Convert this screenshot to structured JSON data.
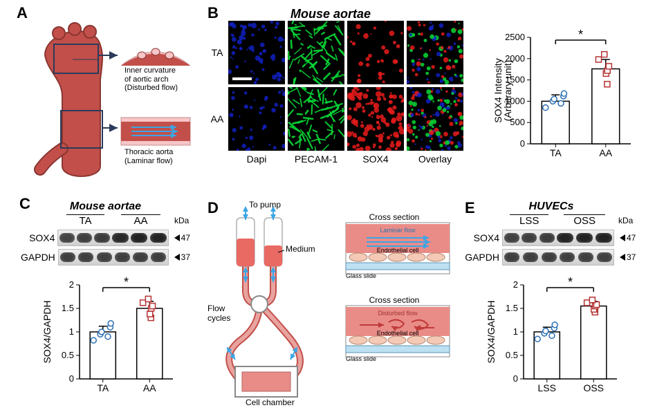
{
  "labels": {
    "A": "A",
    "B": "B",
    "C": "C",
    "D": "D",
    "E": "E"
  },
  "panelA": {
    "inner_label_line1": "Inner curvature",
    "inner_label_line2": "of aortic arch",
    "inner_label_line3": "(Disturbed flow)",
    "thoracic_label_line1": "Thoracic aorta",
    "thoracic_label_line2": "(Laminar flow)",
    "aorta_color": "#c24f4a",
    "highlight_stroke": "#2a3b5a",
    "section_bg": "#f7c6c8",
    "section_dark": "#c24f4a",
    "flow_arrow_color": "#3aa5e6"
  },
  "panelB": {
    "title": "Mouse aortae",
    "rows": [
      "TA",
      "AA"
    ],
    "cols": [
      "Dapi",
      "PECAM-1",
      "SOX4",
      "Overlay"
    ],
    "tile_colors": {
      "dapi": "#1020c0",
      "pecam": "#07d836",
      "sox4": "#e61b1b",
      "overlay_mix": [
        "#1020c0",
        "#07d836",
        "#e61b1b",
        "#ffffff"
      ]
    },
    "scalebar_color": "#ffffff",
    "chart": {
      "type": "bar_scatter",
      "ylabel_line1": "SOX4 Intensity",
      "ylabel_line2": "(Arbitrary unit)",
      "ylim": [
        0,
        2500
      ],
      "yticks": [
        0,
        500,
        1000,
        1500,
        2000,
        2500
      ],
      "groups": [
        "TA",
        "AA"
      ],
      "means": [
        1000,
        1760
      ],
      "sd": [
        150,
        220
      ],
      "points": {
        "TA": [
          850,
          950,
          1000,
          1050,
          1120,
          1180
        ],
        "AA": [
          1400,
          1650,
          1720,
          1820,
          1980,
          2100
        ]
      },
      "bar_fill": "#ffffff",
      "bar_stroke": "#000000",
      "marker_TA": {
        "shape": "circle",
        "stroke": "#2a6fb3",
        "fill": "#ffffff"
      },
      "marker_AA": {
        "shape": "square",
        "stroke": "#b53232",
        "fill": "#ffffff"
      },
      "sig_label": "*",
      "font_size": 14
    }
  },
  "panelC": {
    "title": "Mouse aortae",
    "groups": [
      "TA",
      "AA"
    ],
    "proteins": [
      {
        "name": "SOX4",
        "kda": "47",
        "TA_intensity": [
          0.9,
          1.0,
          1.05
        ],
        "AA_intensity": [
          1.4,
          1.55,
          1.6
        ]
      },
      {
        "name": "GAPDH",
        "kda": "37",
        "TA_intensity": [
          1,
          1,
          1
        ],
        "AA_intensity": [
          1,
          1,
          1
        ]
      }
    ],
    "kda_label": "kDa",
    "chart": {
      "type": "bar_scatter",
      "ylabel": "SOX4/GAPDH",
      "ylim": [
        0,
        2.0
      ],
      "yticks": [
        0,
        0.5,
        1.0,
        1.5,
        2.0
      ],
      "groups": [
        "TA",
        "AA"
      ],
      "means": [
        1.0,
        1.5
      ],
      "sd": [
        0.12,
        0.15
      ],
      "points": {
        "TA": [
          0.82,
          0.9,
          0.95,
          1.0,
          1.1,
          1.18
        ],
        "AA": [
          1.3,
          1.38,
          1.5,
          1.55,
          1.62,
          1.7
        ]
      },
      "bar_fill": "#ffffff",
      "bar_stroke": "#000000",
      "marker_TA": {
        "shape": "circle",
        "stroke": "#2a6fb3",
        "fill": "#ffffff"
      },
      "marker_AA": {
        "shape": "square",
        "stroke": "#b53232",
        "fill": "#ffffff"
      },
      "sig_label": "*",
      "font_size": 14
    }
  },
  "panelD": {
    "pump_label": "To pump",
    "flow_cycles_label": "Flow\ncycles",
    "medium_label": "Medium",
    "chamber_label": "Cell chamber",
    "cross_section_label": "Cross section",
    "laminar_label": "Laminar flow",
    "disturbed_label": "Disturbed flow",
    "endo_label": "Endothelial cell",
    "slide_label": "Glass slide",
    "colors": {
      "tube": "#c24f4a",
      "medium": "#e86a63",
      "bg": "#ffffff",
      "stroke": "#5a5a5a",
      "cell_fill": "#f4c9b5",
      "cell_stroke": "#b58b74",
      "glass_fill": "#bde0f2",
      "glass_stroke": "#5a94b3",
      "laminar_arrow": "#3aa5e6",
      "disturbed_arrow": "#c03a3a",
      "cross_bg": "#e98c87"
    }
  },
  "panelE": {
    "title": "HUVECs",
    "groups": [
      "LSS",
      "OSS"
    ],
    "proteins": [
      {
        "name": "SOX4",
        "kda": "47",
        "LSS_intensity": [
          0.95,
          1.0,
          1.05
        ],
        "OSS_intensity": [
          1.55,
          1.6,
          1.6
        ]
      },
      {
        "name": "GAPDH",
        "kda": "37",
        "LSS_intensity": [
          1,
          1,
          1
        ],
        "OSS_intensity": [
          1,
          1,
          1
        ]
      }
    ],
    "kda_label": "kDa",
    "chart": {
      "type": "bar_scatter",
      "ylabel": "SOX4/GAPDH",
      "ylim": [
        0,
        2.0
      ],
      "yticks": [
        0,
        0.5,
        1.0,
        1.5,
        2.0
      ],
      "groups": [
        "LSS",
        "OSS"
      ],
      "means": [
        1.0,
        1.55
      ],
      "sd": [
        0.1,
        0.1
      ],
      "points": {
        "LSS": [
          0.85,
          0.92,
          0.97,
          1.02,
          1.08,
          1.15
        ],
        "OSS": [
          1.42,
          1.48,
          1.55,
          1.58,
          1.62,
          1.68
        ]
      },
      "bar_fill": "#ffffff",
      "bar_stroke": "#000000",
      "marker_LSS": {
        "shape": "circle",
        "stroke": "#2a6fb3",
        "fill": "#ffffff"
      },
      "marker_OSS": {
        "shape": "square",
        "stroke": "#b53232",
        "fill": "#ffffff"
      },
      "sig_label": "*",
      "font_size": 14
    }
  },
  "typography": {
    "panel_label_fontsize": 22,
    "title_fontsize": 18,
    "axis_fontsize": 14,
    "small_fontsize": 11
  }
}
